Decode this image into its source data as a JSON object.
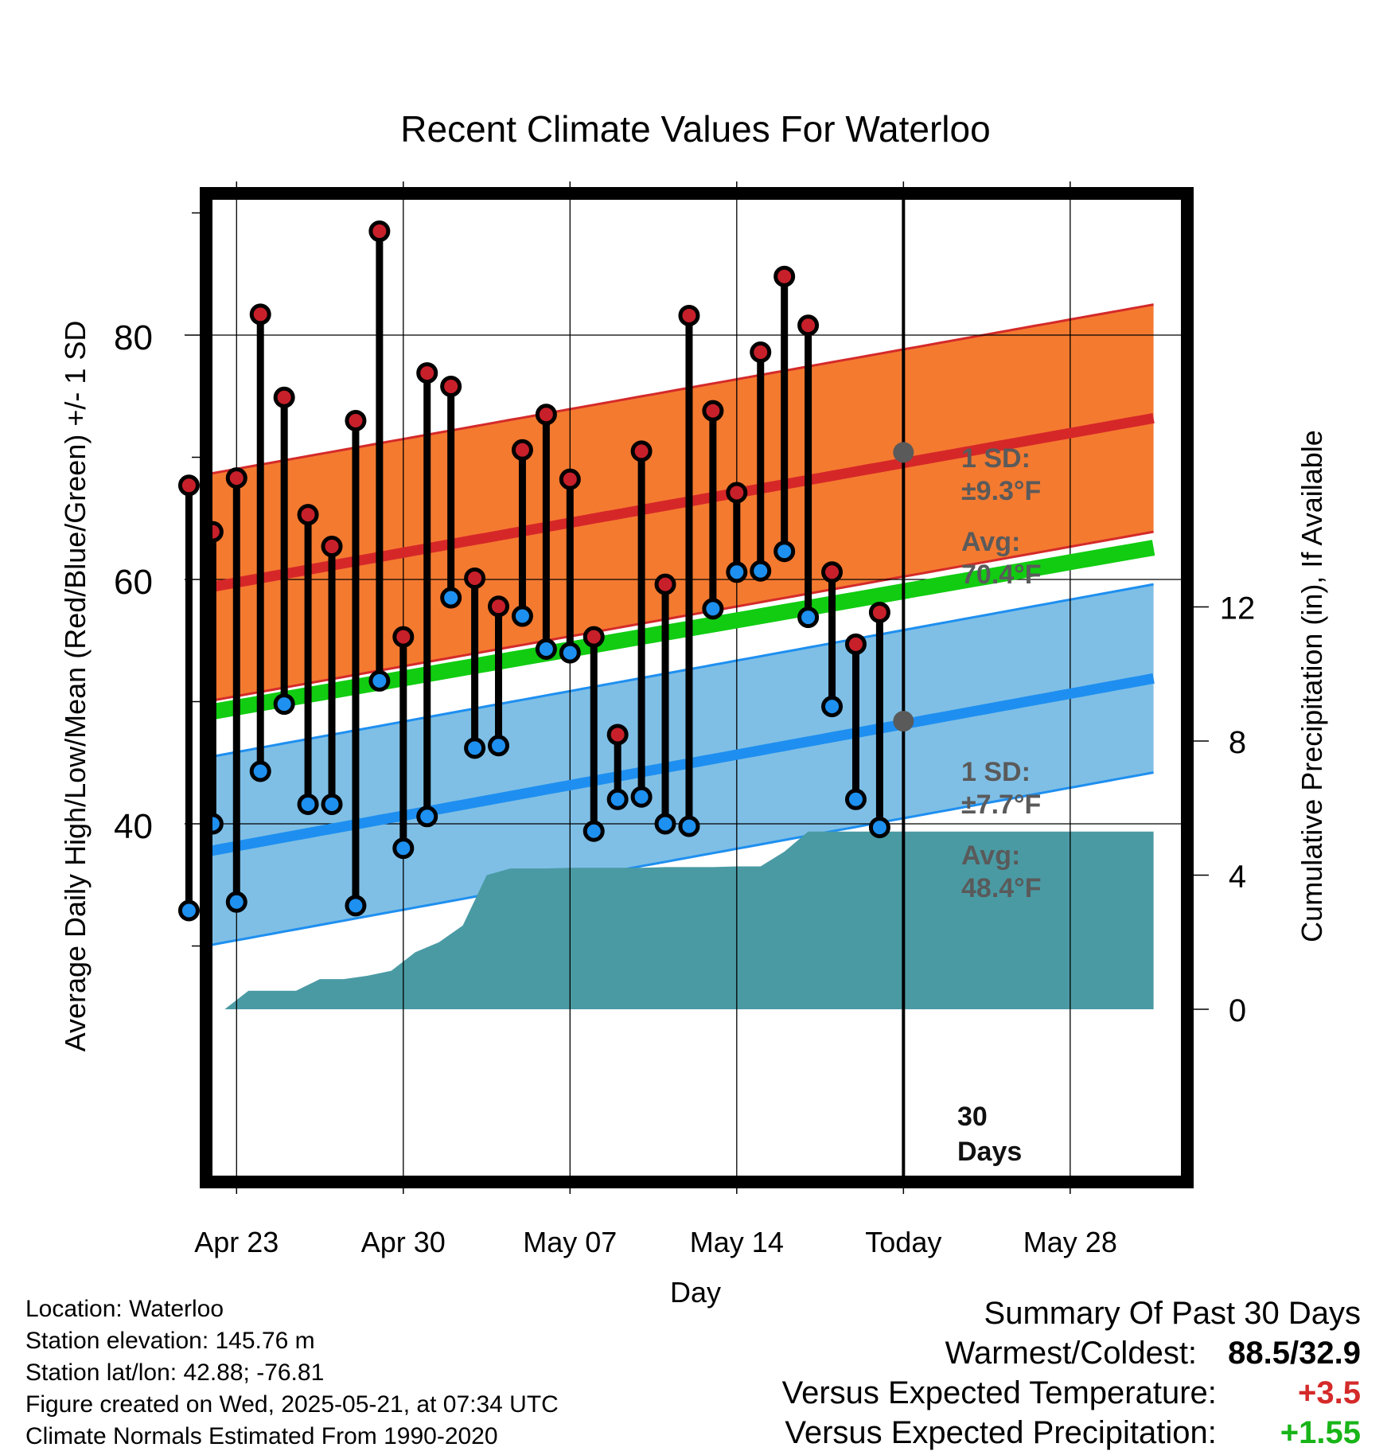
{
  "chart_data": {
    "type": "line",
    "title": "Recent Climate Values For Waterloo",
    "xlabel": "Day",
    "ylabel_left": "Average Daily High/Low/Mean (Red/Blue/Green) +/- 1 SD",
    "ylabel_right": "Cumulative Precipitation (in), If Available",
    "x_tick_labels": [
      "Apr 23",
      "Apr 30",
      "May 07",
      "May 14",
      "Today",
      "May 28"
    ],
    "x_range_days": [
      "Apr 20",
      "May 31"
    ],
    "today_day": "May 21",
    "ylim_left": [
      25,
      94
    ],
    "yticks_left": [
      40,
      60,
      80
    ],
    "ylim_right": [
      0,
      20.6
    ],
    "yticks_right": [
      0,
      4,
      8,
      12
    ],
    "normals": {
      "high_avg": {
        "start": 58.7,
        "end": 73.2
      },
      "high_sd": 9.3,
      "mean_avg": {
        "start": 48.5,
        "end": 62.6
      },
      "low_avg": {
        "start": 37.1,
        "end": 51.9
      },
      "low_sd": 7.7
    },
    "today_annotation": {
      "high": {
        "sd_label": "1 SD:",
        "sd_value": "±9.3°F",
        "avg_label": "Avg:",
        "avg_value": "70.4°F",
        "avg": 70.4
      },
      "low": {
        "sd_label": "1 SD:",
        "sd_value": "±7.7°F",
        "avg_label": "Avg:",
        "avg_value": "48.4°F",
        "avg": 48.4
      },
      "days_label": [
        "30",
        "Days"
      ]
    },
    "series": [
      {
        "name": "High",
        "days": [
          "Apr 21",
          "Apr 22",
          "Apr 23",
          "Apr 24",
          "Apr 25",
          "Apr 26",
          "Apr 27",
          "Apr 28",
          "Apr 29",
          "Apr 30",
          "May 01",
          "May 02",
          "May 03",
          "May 04",
          "May 05",
          "May 06",
          "May 07",
          "May 08",
          "May 09",
          "May 10",
          "May 11",
          "May 12",
          "May 13",
          "May 14",
          "May 15",
          "May 16",
          "May 17",
          "May 18",
          "May 19",
          "May 20"
        ],
        "values": [
          67.7,
          63.9,
          68.3,
          81.7,
          74.9,
          65.3,
          62.7,
          73.0,
          88.5,
          55.3,
          76.9,
          75.8,
          60.1,
          57.8,
          70.6,
          73.5,
          68.2,
          55.3,
          47.3,
          70.5,
          59.6,
          81.6,
          73.8,
          67.1,
          78.6,
          84.8,
          80.8,
          60.6,
          54.7,
          57.3
        ]
      },
      {
        "name": "Low",
        "days": [
          "Apr 21",
          "Apr 22",
          "Apr 23",
          "Apr 24",
          "Apr 25",
          "Apr 26",
          "Apr 27",
          "Apr 28",
          "Apr 29",
          "Apr 30",
          "May 01",
          "May 02",
          "May 03",
          "May 04",
          "May 05",
          "May 06",
          "May 07",
          "May 08",
          "May 09",
          "May 10",
          "May 11",
          "May 12",
          "May 13",
          "May 14",
          "May 15",
          "May 16",
          "May 17",
          "May 18",
          "May 19",
          "May 20"
        ],
        "values": [
          32.9,
          40.0,
          33.6,
          44.3,
          49.8,
          41.6,
          41.6,
          33.3,
          51.7,
          38.0,
          40.6,
          58.5,
          46.2,
          46.4,
          57.0,
          54.3,
          54.0,
          39.4,
          42.0,
          42.2,
          40.0,
          39.8,
          57.6,
          60.6,
          60.7,
          62.3,
          56.9,
          49.6,
          42.0,
          39.7
        ]
      },
      {
        "name": "Cumulative Precipitation",
        "x_days": [
          2.5,
          3.5,
          4.5,
          5.5,
          6.5,
          7.5,
          8.5,
          9.5,
          10.5,
          11.5,
          12.5,
          13.5,
          14.5,
          15.5,
          16,
          17,
          18,
          19,
          20,
          21,
          22,
          23,
          24,
          25,
          26,
          27,
          28,
          29,
          30,
          31,
          41.5
        ],
        "values": [
          0,
          0.55,
          0.55,
          0.55,
          0.9,
          0.9,
          1.0,
          1.15,
          1.7,
          2.0,
          2.5,
          4.0,
          4.2,
          4.2,
          4.2,
          4.22,
          4.22,
          4.22,
          4.22,
          4.24,
          4.24,
          4.24,
          4.26,
          4.26,
          4.7,
          5.3,
          5.3,
          5.3,
          5.3,
          5.3,
          5.3
        ]
      }
    ]
  },
  "footer": {
    "location": "Location: Waterloo",
    "elevation": "Station elevation: 145.76 m",
    "latlon": "Station lat/lon: 42.88; -76.81",
    "created": "Figure created on Wed, 2025-05-21, at 07:34 UTC",
    "normals": "Climate Normals Estimated From 1990-2020"
  },
  "summary": {
    "title": "Summary Of Past 30 Days",
    "warmest_coldest_label": "Warmest/Coldest:",
    "warmest_coldest_value": "88.5/32.9",
    "temp_label": "Versus Expected Temperature:",
    "temp_value": "+3.5",
    "precip_label": "Versus Expected Precipitation:",
    "precip_value": "+1.55"
  },
  "colors": {
    "high_band": "#f47a30",
    "high_line": "#d62728",
    "low_band": "#7fbfe6",
    "low_line": "#1e8ff0",
    "mean_line": "#11cc11",
    "precip_fill": "#4a9aa4",
    "high_marker": "#c8202a",
    "low_marker": "#1e90f0",
    "annotation": "#5a5a5a",
    "warm_text": "#d42a2a",
    "wet_text": "#18b418"
  }
}
